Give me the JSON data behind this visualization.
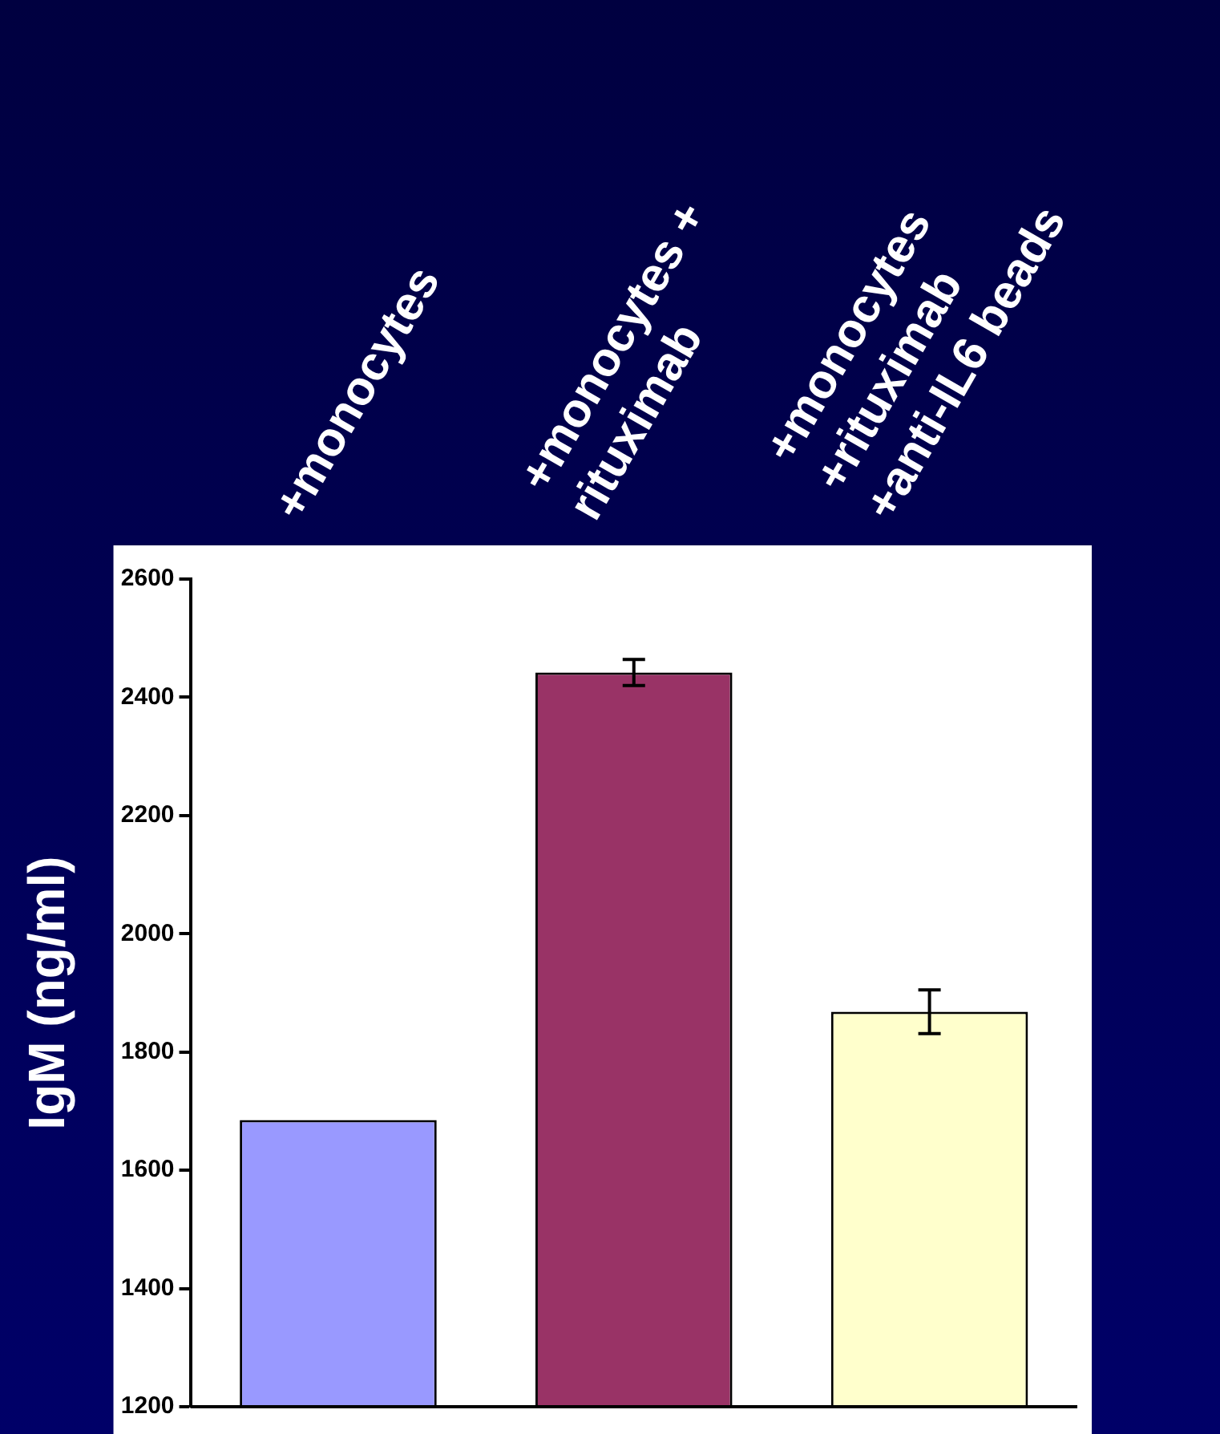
{
  "chart_data": {
    "type": "bar",
    "ylabel": "IgM (ng/ml)",
    "categories": [
      "+monocytes",
      "+monocytes +\nrituximab",
      "+monocytes\n+rituximab\n+anti-IL6 beads"
    ],
    "values": [
      1685,
      2442,
      1868
    ],
    "errors": [
      null,
      22,
      37
    ],
    "colors": [
      "#9999ff",
      "#993366",
      "#ffffcc"
    ],
    "ylim": [
      1200,
      2600
    ],
    "yticks": [
      1200,
      1400,
      1600,
      1800,
      2000,
      2200,
      2400,
      2600
    ],
    "grid": false,
    "legend": false
  }
}
